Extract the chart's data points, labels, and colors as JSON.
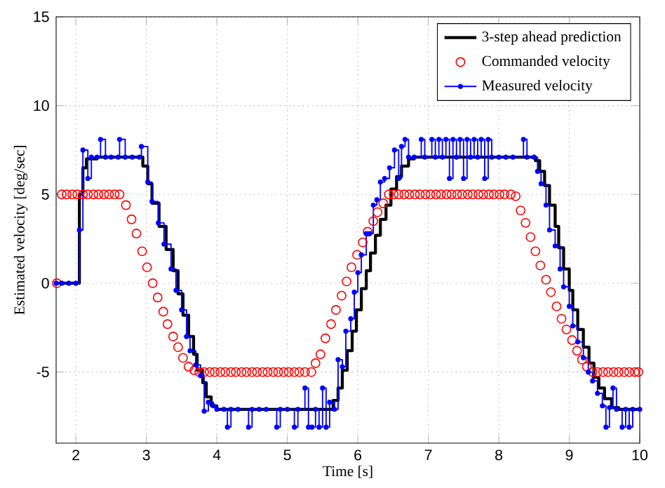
{
  "chart_data": {
    "type": "step",
    "xlabel": "Time [s]",
    "ylabel": "Estimated velocity [deg/sec]",
    "xlim": [
      1.72,
      10
    ],
    "ylim": [
      -9,
      15
    ],
    "xticks": [
      2,
      3,
      4,
      5,
      6,
      7,
      8,
      9,
      10
    ],
    "yticks": [
      -5,
      0,
      5,
      10,
      15
    ],
    "grid": true,
    "legend": "top right",
    "series": [
      {
        "name": "3-step ahead prediction",
        "color": "#000000",
        "x": [
          1.72,
          2.05,
          2.1,
          2.15,
          2.3,
          2.95,
          3.02,
          3.08,
          3.18,
          3.28,
          3.38,
          3.45,
          3.52,
          3.6,
          3.67,
          3.72,
          3.8,
          3.85,
          3.92,
          4.0,
          5.65,
          5.72,
          5.78,
          5.85,
          5.92,
          5.98,
          6.05,
          6.12,
          6.18,
          6.25,
          6.32,
          6.4,
          6.47,
          6.55,
          6.62,
          6.72,
          6.8,
          8.52,
          8.58,
          8.65,
          8.72,
          8.8,
          8.85,
          8.92,
          9.0,
          9.05,
          9.12,
          9.2,
          9.28,
          9.35,
          9.42,
          9.5,
          9.6,
          9.7,
          10.0
        ],
        "values": [
          0,
          5,
          6.5,
          7.0,
          7.1,
          6.6,
          5.6,
          4.5,
          3.2,
          1.9,
          0.7,
          -0.6,
          -1.8,
          -3.0,
          -4.0,
          -4.9,
          -5.6,
          -6.4,
          -6.9,
          -7.1,
          -6.6,
          -5.9,
          -4.9,
          -3.8,
          -2.7,
          -1.5,
          -0.3,
          0.7,
          1.7,
          2.7,
          3.6,
          4.4,
          5.3,
          6.0,
          6.6,
          7.0,
          7.1,
          6.9,
          6.3,
          5.5,
          4.4,
          3.2,
          2.0,
          0.8,
          -0.4,
          -1.5,
          -2.6,
          -3.6,
          -4.5,
          -5.3,
          -5.9,
          -6.5,
          -7.0,
          -7.1,
          -7.1
        ]
      },
      {
        "name": "Commanded velocity",
        "type": "scatter",
        "marker": "circle",
        "color": "#ff0000",
        "x": [
          1.73,
          1.8,
          1.87,
          1.95,
          2.02,
          2.1,
          2.17,
          2.25,
          2.32,
          2.4,
          2.47,
          2.55,
          2.62,
          2.71,
          2.79,
          2.86,
          2.94,
          3.01,
          3.09,
          3.16,
          3.24,
          3.3,
          3.38,
          3.45,
          3.52,
          3.6,
          3.68,
          3.75,
          3.82,
          3.9,
          3.97,
          4.05,
          4.12,
          4.2,
          4.27,
          4.35,
          4.42,
          4.5,
          4.57,
          4.65,
          4.72,
          4.8,
          4.87,
          4.95,
          5.02,
          5.1,
          5.17,
          5.25,
          5.34,
          5.4,
          5.47,
          5.54,
          5.62,
          5.69,
          5.77,
          5.84,
          5.91,
          5.99,
          6.07,
          6.14,
          6.22,
          6.28,
          6.36,
          6.44,
          6.51,
          6.58,
          6.66,
          6.73,
          6.81,
          6.88,
          6.96,
          7.03,
          7.11,
          7.18,
          7.26,
          7.33,
          7.41,
          7.48,
          7.56,
          7.63,
          7.71,
          7.78,
          7.86,
          7.93,
          8.01,
          8.08,
          8.17,
          8.24,
          8.31,
          8.38,
          8.45,
          8.52,
          8.59,
          8.67,
          8.74,
          8.82,
          8.89,
          8.96,
          9.04,
          9.11,
          9.18,
          9.25,
          9.33,
          9.4,
          9.48,
          9.55,
          9.63,
          9.7,
          9.78,
          9.85,
          9.93,
          9.98
        ],
        "values": [
          0,
          5,
          5,
          5,
          5,
          5,
          5,
          5,
          5,
          5,
          5,
          5,
          5,
          4.4,
          3.6,
          2.8,
          1.8,
          0.9,
          0,
          -0.8,
          -1.6,
          -2.3,
          -3.0,
          -3.6,
          -4.2,
          -4.7,
          -4.9,
          -5,
          -5,
          -5,
          -5,
          -5,
          -5,
          -5,
          -5,
          -5,
          -5,
          -5,
          -5,
          -5,
          -5,
          -5,
          -5,
          -5,
          -5,
          -5,
          -5,
          -5,
          -5,
          -4.5,
          -4.0,
          -3.1,
          -2.3,
          -1.5,
          -0.7,
          0.1,
          0.9,
          1.6,
          2.3,
          2.9,
          3.5,
          4.0,
          4.5,
          5,
          5,
          5,
          5,
          5,
          5,
          5,
          5,
          5,
          5,
          5,
          5,
          5,
          5,
          5,
          5,
          5,
          5,
          5,
          5,
          5,
          5,
          5,
          5,
          4.9,
          4.1,
          3.4,
          2.6,
          1.8,
          1.0,
          0.2,
          -0.5,
          -1.3,
          -2.0,
          -2.6,
          -3.2,
          -3.8,
          -4.3,
          -4.7,
          -5,
          -5,
          -5,
          -5,
          -5,
          -5,
          -5,
          -5,
          -5,
          -5
        ]
      },
      {
        "name": "Measured velocity",
        "marker": "circle",
        "color": "#0000ff",
        "x": [
          1.72,
          1.8,
          1.9,
          2.0,
          2.05,
          2.1,
          2.17,
          2.22,
          2.3,
          2.35,
          2.42,
          2.5,
          2.6,
          2.62,
          2.7,
          2.8,
          2.9,
          2.93,
          3.02,
          3.08,
          3.17,
          3.25,
          3.35,
          3.42,
          3.5,
          3.57,
          3.62,
          3.7,
          3.77,
          3.82,
          3.88,
          3.95,
          4.0,
          4.1,
          4.15,
          4.2,
          4.3,
          4.45,
          4.5,
          4.6,
          4.7,
          4.85,
          4.9,
          5.0,
          5.1,
          5.15,
          5.25,
          5.3,
          5.35,
          5.4,
          5.45,
          5.5,
          5.55,
          5.6,
          5.67,
          5.72,
          5.78,
          5.83,
          5.9,
          5.95,
          6.0,
          6.05,
          6.12,
          6.17,
          6.22,
          6.27,
          6.32,
          6.38,
          6.45,
          6.52,
          6.58,
          6.62,
          6.67,
          6.72,
          6.8,
          6.9,
          6.95,
          7.05,
          7.1,
          7.15,
          7.2,
          7.25,
          7.3,
          7.35,
          7.4,
          7.45,
          7.5,
          7.55,
          7.6,
          7.65,
          7.7,
          7.75,
          7.8,
          7.85,
          7.9,
          8.0,
          8.1,
          8.2,
          8.35,
          8.4,
          8.5,
          8.55,
          8.6,
          8.67,
          8.72,
          8.8,
          8.87,
          8.92,
          9.0,
          9.05,
          9.12,
          9.2,
          9.27,
          9.33,
          9.4,
          9.47,
          9.52,
          9.57,
          9.62,
          9.67,
          9.75,
          9.8,
          9.85,
          9.9,
          10.0
        ],
        "values": [
          0,
          0,
          0,
          0,
          3.0,
          7.5,
          5.9,
          7.1,
          7.1,
          8.1,
          7.1,
          7.1,
          7.1,
          8.1,
          7.1,
          7.1,
          7.1,
          7.7,
          5.7,
          4.6,
          3.4,
          2.2,
          0.8,
          -0.4,
          -1.5,
          -3.0,
          -3.8,
          -4.6,
          -5.2,
          -7.2,
          -6.7,
          -6.9,
          -7.1,
          -7.1,
          -8.1,
          -7.1,
          -7.1,
          -8.1,
          -7.1,
          -7.1,
          -7.1,
          -8.1,
          -7.1,
          -7.1,
          -8.1,
          -7.1,
          -5.9,
          -8.1,
          -8.1,
          -7.1,
          -8.1,
          -5.9,
          -8.1,
          -6.7,
          -7.1,
          -4.3,
          -4.7,
          -2.7,
          -2.0,
          -0.5,
          0.6,
          1.6,
          2.8,
          2.8,
          4.4,
          4.7,
          5.7,
          5.9,
          6.5,
          7.5,
          5.9,
          7.7,
          8.1,
          7.1,
          7.1,
          8.1,
          7.1,
          8.1,
          7.1,
          8.1,
          7.1,
          8.1,
          5.9,
          8.1,
          7.1,
          8.1,
          5.9,
          8.1,
          7.1,
          8.1,
          7.1,
          8.1,
          5.9,
          8.1,
          7.1,
          7.1,
          7.1,
          7.1,
          8.1,
          7.1,
          7.1,
          6.3,
          5.6,
          4.4,
          3.0,
          2.1,
          0.8,
          -0.2,
          -1.3,
          -2.4,
          -3.3,
          -4.2,
          -5.0,
          -5.5,
          -6.2,
          -6.9,
          -8.1,
          -7.0,
          -5.9,
          -7.1,
          -8.1,
          -7.1,
          -8.1,
          -7.1,
          -7.1
        ]
      }
    ]
  }
}
